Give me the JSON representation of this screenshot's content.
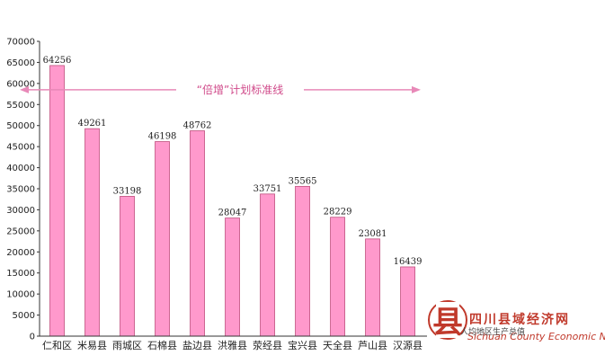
{
  "chart_data": {
    "type": "bar",
    "categories": [
      "仁和区",
      "米易县",
      "雨城区",
      "石棉县",
      "盐边县",
      "洪雅县",
      "荥经县",
      "宝兴县",
      "天全县",
      "芦山县",
      "汉源县"
    ],
    "values": [
      64256,
      49261,
      33198,
      46198,
      48762,
      28047,
      33751,
      35565,
      28229,
      23081,
      16439
    ],
    "ylim": [
      0,
      70000
    ],
    "yticks": [
      0,
      5000,
      10000,
      15000,
      20000,
      25000,
      30000,
      35000,
      40000,
      45000,
      50000,
      55000,
      60000,
      65000,
      70000
    ],
    "grid": false,
    "bar_color": "#ff99cc",
    "bar_edge_color": "#c0507e",
    "annotation": {
      "text": "“倍增”计划标准线",
      "y": 58500,
      "color": "#e889b8"
    },
    "legend_text": "人均地区生产总值",
    "xlabel": "",
    "ylabel": "",
    "title": ""
  },
  "watermark": {
    "logo_char": "县",
    "name_cn": "四川县域经济网",
    "name_en": "Sichuan County Economic Net",
    "color": "#c0392b"
  }
}
